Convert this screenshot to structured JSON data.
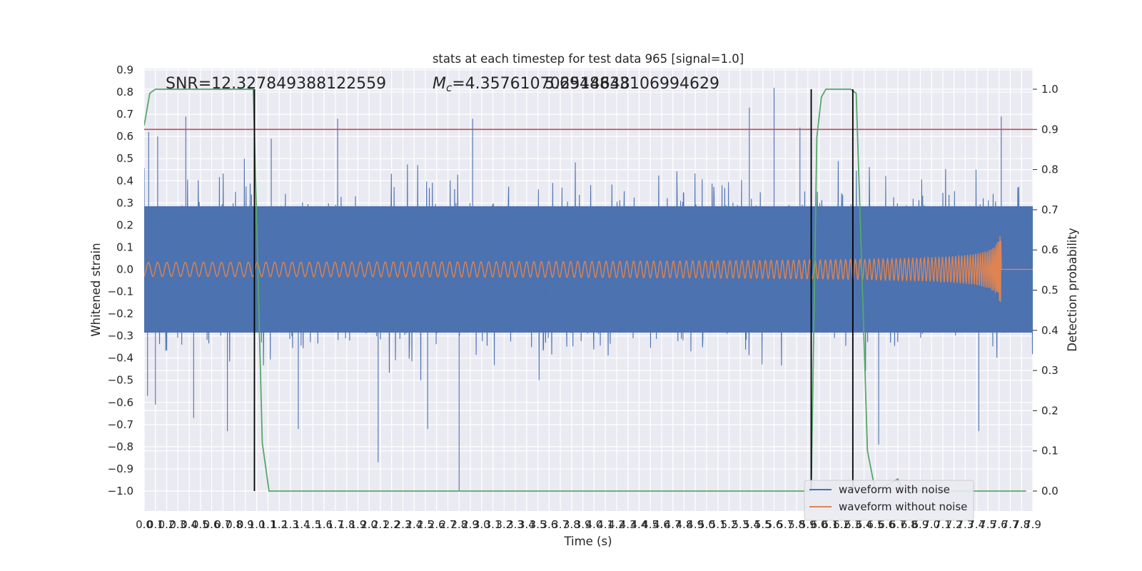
{
  "chart_data": {
    "type": "line",
    "title": "stats at each timestep for test data 965 [signal=1.0]",
    "xlabel": "Time (s)",
    "ylabel": "Whitened strain",
    "y2label": "Detection probability",
    "xlim": [
      0.0,
      7.9
    ],
    "ylim": [
      -1.0,
      0.9
    ],
    "y2lim": [
      0.0,
      1.0
    ],
    "x_ticks": [
      "0.0",
      "0.1",
      "0.2",
      "0.3",
      "0.4",
      "0.5",
      "0.6",
      "0.7",
      "0.8",
      "0.9",
      "1.0",
      "1.1",
      "1.2",
      "1.3",
      "1.4",
      "1.5",
      "1.6",
      "1.7",
      "1.8",
      "1.9",
      "2.0",
      "2.1",
      "2.2",
      "2.3",
      "2.4",
      "2.5",
      "2.6",
      "2.7",
      "2.8",
      "2.9",
      "3.0",
      "3.1",
      "3.2",
      "3.3",
      "3.4",
      "3.5",
      "3.6",
      "3.7",
      "3.8",
      "3.9",
      "4.0",
      "4.1",
      "4.2",
      "4.3",
      "4.4",
      "4.5",
      "4.6",
      "4.7",
      "4.8",
      "4.9",
      "5.0",
      "5.1",
      "5.2",
      "5.3",
      "5.4",
      "5.5",
      "5.6",
      "5.7",
      "5.8",
      "5.9",
      "6.0",
      "6.1",
      "6.2",
      "6.3",
      "6.4",
      "6.5",
      "6.6",
      "6.7",
      "6.8",
      "6.9",
      "7.0",
      "7.1",
      "7.2",
      "7.3",
      "7.4",
      "7.5",
      "7.6",
      "7.7",
      "7.8",
      "7.9"
    ],
    "y_ticks": [
      "0.9",
      "0.8",
      "0.7",
      "0.6",
      "0.5",
      "0.4",
      "0.3",
      "0.2",
      "0.1",
      "0.0",
      "−0.1",
      "−0.2",
      "−0.3",
      "−0.4",
      "−0.5",
      "−0.6",
      "−0.7",
      "−0.8",
      "−0.9",
      "−1.0"
    ],
    "y2_ticks": [
      "1.0",
      "0.9",
      "0.8",
      "0.7",
      "0.6",
      "0.5",
      "0.4",
      "0.3",
      "0.2",
      "0.1",
      "0.0"
    ],
    "annotations": {
      "snr": "SNR=12.327849388122559",
      "mc_symbol": "M",
      "mc_sub": "c",
      "mc_value": "=4.357610702514648",
      "overlap": "5.6948833106994629"
    },
    "legend": {
      "placement": "lower-right",
      "entries": [
        "waveform with noise",
        "waveform without noise"
      ]
    },
    "threshold": {
      "value": 0.9,
      "axis": "y2"
    },
    "vlines": [
      0.98,
      5.93,
      6.3
    ],
    "series": [
      {
        "name": "waveform with noise",
        "style": "dense noise, amplitude envelope about ±0.35 with spikes to 0.82 and −1.0",
        "spikes": [
          [
            0.03,
            -0.57
          ],
          [
            0.04,
            0.62
          ],
          [
            0.1,
            -0.61
          ],
          [
            0.12,
            0.6
          ],
          [
            0.37,
            0.69
          ],
          [
            0.44,
            -0.67
          ],
          [
            0.74,
            -0.73
          ],
          [
            0.98,
            -0.61
          ],
          [
            1.13,
            0.59
          ],
          [
            1.37,
            -0.72
          ],
          [
            1.72,
            0.68
          ],
          [
            2.08,
            -0.87
          ],
          [
            2.52,
            -0.72
          ],
          [
            2.8,
            -1.0
          ],
          [
            2.92,
            0.68
          ],
          [
            5.38,
            0.73
          ],
          [
            5.6,
            0.82
          ],
          [
            5.83,
            0.64
          ],
          [
            6.53,
            -0.79
          ],
          [
            7.42,
            -0.73
          ],
          [
            7.62,
            0.69
          ]
        ]
      },
      {
        "name": "waveform without noise",
        "style": "chirp growing from ±0.02 to ±0.2 peaking at about t=7.6 then flat",
        "merger_time": 7.62,
        "peak_amplitude": 0.2
      },
      {
        "name": "detection probability",
        "axis": "y2",
        "points": [
          [
            0.0,
            0.91
          ],
          [
            0.05,
            0.99
          ],
          [
            0.1,
            1.0
          ],
          [
            0.97,
            1.0
          ],
          [
            1.05,
            0.12
          ],
          [
            1.11,
            0.0
          ],
          [
            5.93,
            0.0
          ],
          [
            5.98,
            0.88
          ],
          [
            6.02,
            0.98
          ],
          [
            6.06,
            1.0
          ],
          [
            6.28,
            1.0
          ],
          [
            6.33,
            0.99
          ],
          [
            6.38,
            0.55
          ],
          [
            6.43,
            0.1
          ],
          [
            6.5,
            0.0
          ],
          [
            6.64,
            0.02
          ],
          [
            6.7,
            0.03
          ],
          [
            6.74,
            0.0
          ],
          [
            7.84,
            0.0
          ]
        ]
      }
    ],
    "grid": true,
    "colors": {
      "noise": "#4c72b0",
      "clean": "#dd8452",
      "probability": "#55a868",
      "threshold": "#c44e52",
      "vline": "#000000",
      "plot_bg": "#eaeaf2",
      "grid": "#ffffff"
    }
  }
}
